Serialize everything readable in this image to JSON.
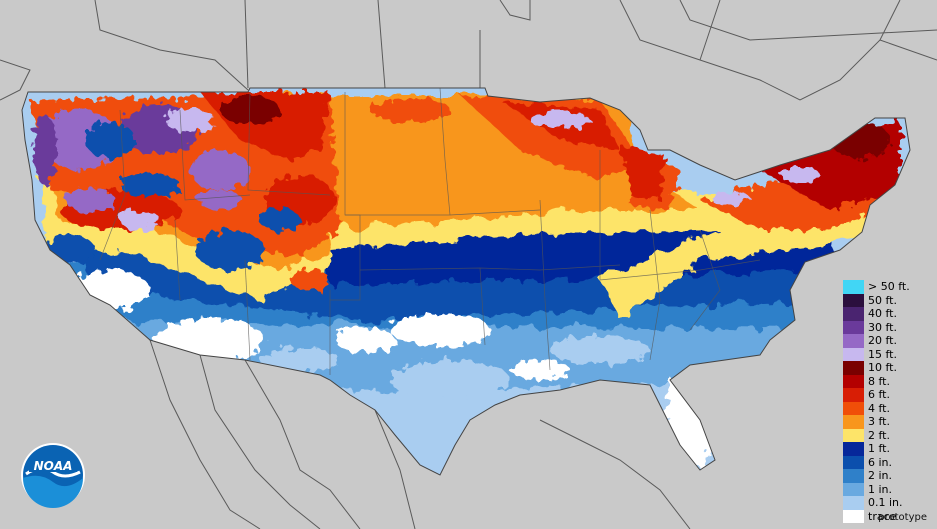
{
  "map": {
    "region": "contiguous-united-states",
    "background_color": "#c9c9c9",
    "border_color": "#555555"
  },
  "legend": {
    "items": [
      {
        "label": "> 50 ft.",
        "color": "#41d6f5"
      },
      {
        "label": "50 ft.",
        "color": "#2b0f3d"
      },
      {
        "label": "40 ft.",
        "color": "#4a2470"
      },
      {
        "label": "30 ft.",
        "color": "#6a3a9b"
      },
      {
        "label": "20 ft.",
        "color": "#9569c6"
      },
      {
        "label": "15 ft.",
        "color": "#c7b8ef"
      },
      {
        "label": "10 ft.",
        "color": "#7a0000"
      },
      {
        "label": "8 ft.",
        "color": "#b30000"
      },
      {
        "label": "6 ft.",
        "color": "#d81e05"
      },
      {
        "label": "4 ft.",
        "color": "#f04e08"
      },
      {
        "label": "3 ft.",
        "color": "#f8961c"
      },
      {
        "label": "2 ft.",
        "color": "#fde469"
      },
      {
        "label": "1 ft.",
        "color": "#06279a"
      },
      {
        "label": "6 in.",
        "color": "#0b4fad"
      },
      {
        "label": "2 in.",
        "color": "#2f80c9"
      },
      {
        "label": "1 in.",
        "color": "#69a9e0"
      },
      {
        "label": "0.1 in.",
        "color": "#a9cdf0"
      },
      {
        "label": "trace",
        "color": "#ffffff"
      }
    ]
  },
  "logo": {
    "text": "NOAA",
    "icon": "noaa-logo-icon"
  },
  "footer": {
    "note": "prototype"
  }
}
